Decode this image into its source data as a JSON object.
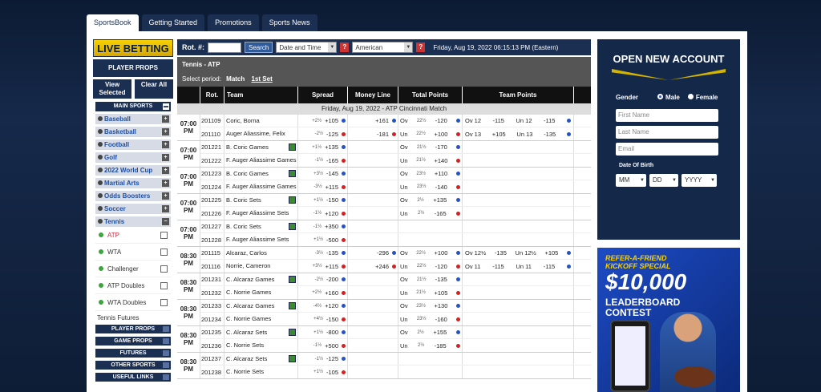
{
  "tabs": [
    "SportsBook",
    "Getting Started",
    "Promotions",
    "Sports News"
  ],
  "sidebar": {
    "live_betting": "LIVE BETTING",
    "player_props": "PLAYER PROPS",
    "view_selected": "View Selected",
    "clear_all": "Clear All",
    "main_sports": "MAIN SPORTS",
    "sports": [
      "Baseball",
      "Basketball",
      "Football",
      "Golf",
      "2022 World Cup",
      "Martial Arts",
      "Odds Boosters",
      "Soccer",
      "Tennis"
    ],
    "tennis_sub": [
      "ATP",
      "WTA",
      "Challenger",
      "ATP Doubles",
      "WTA Doubles"
    ],
    "tennis_futures": "Tennis Futures",
    "bottom": [
      "PLAYER PROPS",
      "GAME PROPS",
      "FUTURES",
      "OTHER SPORTS",
      "USEFUL LINKS"
    ]
  },
  "toolbar": {
    "rot_label": "Rot. #:",
    "search": "Search",
    "sort": "Date and Time",
    "odds_format": "American",
    "datetime": "Friday, Aug 19, 2022 06:15:13 PM (Eastern)"
  },
  "event": {
    "title": "Tennis - ATP",
    "period_label": "Select period:",
    "period_match": "Match",
    "period_set": "1st Set"
  },
  "columns": [
    "Rot.",
    "Team",
    "Spread",
    "Money Line",
    "Total Points",
    "Team Points"
  ],
  "date_bar": "Friday, Aug 19, 2022 - ATP Cincinnati Match",
  "games": [
    {
      "time": "07:00 PM",
      "rows": [
        {
          "rot": "201109",
          "team": "Coric, Borna",
          "sp_h": "+2½",
          "sp": "+105",
          "ml": "+161",
          "tp_ou": "Ov",
          "tp_l": "22½",
          "tp": "-120",
          "t2a": "Ov  12",
          "t2b": "-115",
          "t2c": "Un  12",
          "t2d": "-115"
        },
        {
          "rot": "201110",
          "team": "Auger Aliassime, Felix",
          "sp_h": "-2½",
          "sp": "-125",
          "ml": "-181",
          "tp_ou": "Un",
          "tp_l": "22½",
          "tp": "+100",
          "t2a": "Ov  13",
          "t2b": "+105",
          "t2c": "Un  13",
          "t2d": "-135"
        }
      ]
    },
    {
      "time": "07:00 PM",
      "rows": [
        {
          "rot": "201221",
          "team": "B. Coric Games",
          "sp_h": "+1½",
          "sp": "+135",
          "ml": "",
          "tp_ou": "Ov",
          "tp_l": "21½",
          "tp": "-170"
        },
        {
          "rot": "201222",
          "team": "F. Auger Aliassime Games",
          "sp_h": "-1½",
          "sp": "-165",
          "ml": "",
          "tp_ou": "Un",
          "tp_l": "21½",
          "tp": "+140"
        }
      ]
    },
    {
      "time": "07:00 PM",
      "rows": [
        {
          "rot": "201223",
          "team": "B. Coric Games",
          "sp_h": "+3½",
          "sp": "-145",
          "ml": "",
          "tp_ou": "Ov",
          "tp_l": "23½",
          "tp": "+110"
        },
        {
          "rot": "201224",
          "team": "F. Auger Aliassime Games",
          "sp_h": "-3½",
          "sp": "+115",
          "ml": "",
          "tp_ou": "Un",
          "tp_l": "23½",
          "tp": "-140"
        }
      ]
    },
    {
      "time": "07:00 PM",
      "rows": [
        {
          "rot": "201225",
          "team": "B. Coric Sets",
          "sp_h": "+1½",
          "sp": "-150",
          "ml": "",
          "tp_ou": "Ov",
          "tp_l": "2½",
          "tp": "+135"
        },
        {
          "rot": "201226",
          "team": "F. Auger Aliassime Sets",
          "sp_h": "-1½",
          "sp": "+120",
          "ml": "",
          "tp_ou": "Un",
          "tp_l": "2½",
          "tp": "-165"
        }
      ]
    },
    {
      "time": "07:00 PM",
      "rows": [
        {
          "rot": "201227",
          "team": "B. Coric Sets",
          "sp_h": "-1½",
          "sp": "+350",
          "ml": ""
        },
        {
          "rot": "201228",
          "team": "F. Auger Aliassime Sets",
          "sp_h": "+1½",
          "sp": "-500",
          "ml": ""
        }
      ]
    },
    {
      "time": "08:30 PM",
      "rows": [
        {
          "rot": "201115",
          "team": "Alcaraz, Carlos",
          "sp_h": "-3½",
          "sp": "-135",
          "ml": "-296",
          "tp_ou": "Ov",
          "tp_l": "22½",
          "tp": "+100",
          "t2a": "Ov 12½",
          "t2b": "-135",
          "t2c": "Un 12½",
          "t2d": "+105"
        },
        {
          "rot": "201116",
          "team": "Norrie, Cameron",
          "sp_h": "+3½",
          "sp": "+115",
          "ml": "+246",
          "tp_ou": "Un",
          "tp_l": "22½",
          "tp": "-120",
          "t2a": "Ov  11",
          "t2b": "-115",
          "t2c": "Un  11",
          "t2d": "-115"
        }
      ]
    },
    {
      "time": "08:30 PM",
      "rows": [
        {
          "rot": "201231",
          "team": "C. Alcaraz Games",
          "sp_h": "-2½",
          "sp": "-200",
          "ml": "",
          "tp_ou": "Ov",
          "tp_l": "21½",
          "tp": "-135"
        },
        {
          "rot": "201232",
          "team": "C. Norrie Games",
          "sp_h": "+2½",
          "sp": "+160",
          "ml": "",
          "tp_ou": "Un",
          "tp_l": "21½",
          "tp": "+105"
        }
      ]
    },
    {
      "time": "08:30 PM",
      "rows": [
        {
          "rot": "201233",
          "team": "C. Alcaraz Games",
          "sp_h": "-4½",
          "sp": "+120",
          "ml": "",
          "tp_ou": "Ov",
          "tp_l": "23½",
          "tp": "+130"
        },
        {
          "rot": "201234",
          "team": "C. Norrie Games",
          "sp_h": "+4½",
          "sp": "-150",
          "ml": "",
          "tp_ou": "Un",
          "tp_l": "23½",
          "tp": "-160"
        }
      ]
    },
    {
      "time": "08:30 PM",
      "rows": [
        {
          "rot": "201235",
          "team": "C. Alcaraz Sets",
          "sp_h": "+1½",
          "sp": "-800",
          "ml": "",
          "tp_ou": "Ov",
          "tp_l": "2½",
          "tp": "+155"
        },
        {
          "rot": "201236",
          "team": "C. Norrie Sets",
          "sp_h": "-1½",
          "sp": "+500",
          "ml": "",
          "tp_ou": "Un",
          "tp_l": "2½",
          "tp": "-185"
        }
      ]
    },
    {
      "time": "08:30 PM",
      "rows": [
        {
          "rot": "201237",
          "team": "C. Alcaraz Sets",
          "sp_h": "-1½",
          "sp": "-125",
          "ml": ""
        },
        {
          "rot": "201238",
          "team": "C. Norrie Sets",
          "sp_h": "+1½",
          "sp": "-105",
          "ml": ""
        }
      ]
    }
  ],
  "account": {
    "title": "OPEN NEW ACCOUNT",
    "gender": "Gender",
    "male": "Male",
    "female": "Female",
    "first": "First Name",
    "last": "Last Name",
    "email": "Email",
    "dob": "Date Of Birth",
    "mm": "MM",
    "dd": "DD",
    "yyyy": "YYYY"
  },
  "promo": {
    "line1": "REFER-A-FRIEND",
    "line2": "KICKOFF SPECIAL",
    "amount": "$10,000",
    "line3": "LEADERBOARD",
    "line4": "CONTEST"
  }
}
